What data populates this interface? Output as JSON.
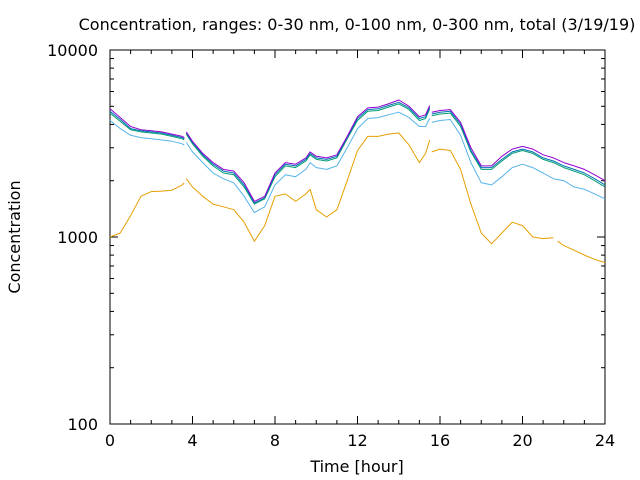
{
  "chart_data": {
    "type": "line",
    "title": "Concentration, ranges: 0-30 nm, 0-100 nm, 0-300 nm, total (3/19/19)",
    "xlabel": "Time [hour]",
    "ylabel": "Concentration",
    "xlim": [
      0,
      24
    ],
    "ylim": [
      100,
      10000
    ],
    "yscale": "log",
    "grid": false,
    "x_ticks": [
      0,
      4,
      8,
      12,
      16,
      20,
      24
    ],
    "x_tick_labels": [
      "0",
      "4",
      "8",
      "12",
      "16",
      "20",
      "24"
    ],
    "y_ticks": [
      100,
      1000,
      10000
    ],
    "y_tick_labels": [
      "100",
      "1000",
      "10000"
    ],
    "series": [
      {
        "color": "#e69f00",
        "x": [
          0,
          0.5,
          1,
          1.5,
          2,
          2.5,
          3,
          3.5,
          3.6,
          null,
          3.7,
          4,
          4.5,
          5,
          5.5,
          6,
          6.5,
          7,
          7.5,
          8,
          8.5,
          9,
          9.5,
          9.7,
          10,
          10.5,
          11,
          11.5,
          12,
          12.5,
          13,
          13.5,
          14,
          14.5,
          15,
          15.3,
          15.5,
          null,
          15.6,
          16,
          16.5,
          17,
          17.5,
          18,
          18.5,
          19,
          19.5,
          20,
          20.5,
          21,
          21.5,
          null,
          21.7,
          22,
          22.5,
          23,
          23.5,
          24
        ],
        "y": [
          1000,
          1050,
          1300,
          1650,
          1750,
          1760,
          1780,
          1900,
          1950,
          null,
          2050,
          1850,
          1650,
          1500,
          1450,
          1400,
          1200,
          950,
          1150,
          1650,
          1700,
          1550,
          1700,
          1800,
          1400,
          1280,
          1400,
          2000,
          2900,
          3450,
          3450,
          3550,
          3600,
          3100,
          2500,
          2800,
          3300,
          null,
          2850,
          2950,
          2900,
          2300,
          1500,
          1050,
          920,
          1050,
          1200,
          1150,
          1000,
          980,
          990,
          null,
          950,
          900,
          850,
          800,
          760,
          730
        ]
      },
      {
        "color": "#56b4e9",
        "x": [
          0,
          0.5,
          1,
          1.5,
          2,
          2.5,
          3,
          3.5,
          3.6,
          null,
          3.7,
          4,
          4.5,
          5,
          5.5,
          6,
          6.5,
          7,
          7.5,
          8,
          8.5,
          9,
          9.5,
          9.7,
          10,
          10.5,
          11,
          11.5,
          12,
          12.5,
          13,
          13.5,
          14,
          14.5,
          15,
          15.3,
          15.5,
          null,
          15.6,
          16,
          16.5,
          17,
          17.5,
          18,
          18.5,
          19,
          19.5,
          20,
          20.5,
          21,
          21.5,
          22,
          22.5,
          23,
          23.5,
          24
        ],
        "y": [
          4200,
          3800,
          3500,
          3400,
          3350,
          3300,
          3250,
          3150,
          3100,
          null,
          3200,
          2850,
          2500,
          2200,
          2050,
          1950,
          1650,
          1350,
          1450,
          1900,
          2150,
          2100,
          2300,
          2500,
          2350,
          2300,
          2400,
          3000,
          3800,
          4300,
          4350,
          4500,
          4650,
          4350,
          3900,
          3900,
          4300,
          null,
          4100,
          4200,
          4250,
          3500,
          2500,
          1950,
          1900,
          2100,
          2350,
          2450,
          2350,
          2200,
          2050,
          2000,
          1850,
          1800,
          1700,
          1600
        ]
      },
      {
        "color": "#009e73",
        "x": [
          0,
          0.5,
          1,
          1.5,
          2,
          2.5,
          3,
          3.5,
          3.6,
          null,
          3.7,
          4,
          4.5,
          5,
          5.5,
          6,
          6.5,
          7,
          7.5,
          8,
          8.5,
          9,
          9.5,
          9.7,
          10,
          10.5,
          11,
          11.5,
          12,
          12.5,
          13,
          13.5,
          14,
          14.5,
          15,
          15.3,
          15.5,
          null,
          15.6,
          16,
          16.5,
          17,
          17.5,
          18,
          18.5,
          19,
          19.5,
          20,
          20.5,
          21,
          21.5,
          22,
          22.5,
          23,
          23.5,
          24
        ],
        "y": [
          4600,
          4150,
          3750,
          3650,
          3600,
          3550,
          3450,
          3350,
          3300,
          null,
          3550,
          3150,
          2700,
          2400,
          2200,
          2150,
          1850,
          1500,
          1600,
          2100,
          2400,
          2350,
          2550,
          2750,
          2600,
          2550,
          2650,
          3350,
          4200,
          4700,
          4750,
          4950,
          5150,
          4800,
          4200,
          4300,
          4850,
          null,
          4450,
          4550,
          4600,
          3900,
          2850,
          2300,
          2300,
          2550,
          2800,
          2900,
          2800,
          2600,
          2500,
          2350,
          2250,
          2150,
          2000,
          1850
        ]
      },
      {
        "color": "#0072b2",
        "x": [
          0,
          0.5,
          1,
          1.5,
          2,
          2.5,
          3,
          3.5,
          3.6,
          null,
          3.7,
          4,
          4.5,
          5,
          5.5,
          6,
          6.5,
          7,
          7.5,
          8,
          8.5,
          9,
          9.5,
          9.7,
          10,
          10.5,
          11,
          11.5,
          12,
          12.5,
          13,
          13.5,
          14,
          14.5,
          15,
          15.3,
          15.5,
          null,
          15.6,
          16,
          16.5,
          17,
          17.5,
          18,
          18.5,
          19,
          19.5,
          20,
          20.5,
          21,
          21.5,
          22,
          22.5,
          23,
          23.5,
          24
        ],
        "y": [
          4700,
          4250,
          3800,
          3700,
          3650,
          3600,
          3500,
          3400,
          3350,
          null,
          3600,
          3200,
          2750,
          2450,
          2250,
          2200,
          1900,
          1520,
          1620,
          2150,
          2450,
          2400,
          2600,
          2800,
          2650,
          2600,
          2700,
          3400,
          4300,
          4800,
          4850,
          5050,
          5250,
          4900,
          4300,
          4400,
          4950,
          null,
          4550,
          4650,
          4700,
          4000,
          2900,
          2350,
          2350,
          2600,
          2850,
          2950,
          2850,
          2650,
          2550,
          2400,
          2300,
          2200,
          2050,
          1900
        ]
      },
      {
        "color": "#9400d3",
        "x": [
          0,
          0.5,
          1,
          1.5,
          2,
          2.5,
          3,
          3.5,
          3.6,
          null,
          3.7,
          4,
          4.5,
          5,
          5.5,
          6,
          6.5,
          7,
          7.5,
          8,
          8.5,
          9,
          9.5,
          9.7,
          10,
          10.5,
          11,
          11.5,
          12,
          12.5,
          13,
          13.5,
          14,
          14.5,
          15,
          15.3,
          15.5,
          null,
          15.6,
          16,
          16.5,
          17,
          17.5,
          18,
          18.5,
          19,
          19.5,
          20,
          20.5,
          21,
          21.5,
          22,
          22.5,
          23,
          23.5,
          24
        ],
        "y": [
          4850,
          4350,
          3900,
          3750,
          3700,
          3650,
          3550,
          3450,
          3400,
          null,
          3650,
          3250,
          2800,
          2500,
          2300,
          2250,
          1950,
          1550,
          1650,
          2200,
          2500,
          2450,
          2650,
          2850,
          2700,
          2650,
          2750,
          3450,
          4400,
          4900,
          4950,
          5150,
          5400,
          5000,
          4400,
          4500,
          5050,
          null,
          4650,
          4750,
          4800,
          4100,
          3000,
          2400,
          2400,
          2700,
          2950,
          3050,
          2950,
          2750,
          2650,
          2500,
          2400,
          2300,
          2150,
          2000
        ]
      }
    ]
  }
}
